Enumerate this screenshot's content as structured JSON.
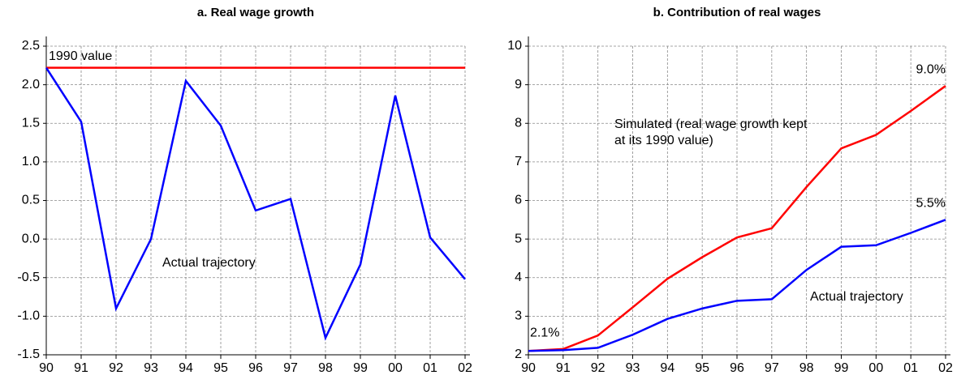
{
  "chart_data": [
    {
      "type": "line",
      "title": "a. Real wage growth",
      "categories": [
        "90",
        "91",
        "92",
        "93",
        "94",
        "95",
        "96",
        "97",
        "98",
        "99",
        "00",
        "01",
        "02"
      ],
      "ylim": [
        -1.5,
        2.5
      ],
      "yticks": [
        2.5,
        {
          "value": 2,
          "label": "2.0"
        },
        1.5,
        {
          "value": 1,
          "label": "1.0"
        },
        0.5,
        {
          "value": 0,
          "label": "0.0"
        },
        -0.5,
        {
          "value": -1,
          "label": "-1.0"
        },
        -1.5
      ],
      "grid": true,
      "series": [
        {
          "name": "1990 value",
          "color": "#ff0000",
          "values": [
            2.22,
            2.22,
            2.22,
            2.22,
            2.22,
            2.22,
            2.22,
            2.22,
            2.22,
            2.22,
            2.22,
            2.22,
            2.22
          ]
        },
        {
          "name": "Actual trajectory",
          "color": "#0000ff",
          "values": [
            2.22,
            1.52,
            -0.9,
            0.0,
            2.05,
            1.47,
            0.37,
            0.52,
            -1.28,
            -0.33,
            1.86,
            0.02,
            -0.52
          ]
        }
      ]
    },
    {
      "type": "line",
      "title": "b. Contribution of real wages",
      "categories": [
        "90",
        "91",
        "92",
        "93",
        "94",
        "95",
        "96",
        "97",
        "98",
        "99",
        "00",
        "01",
        "02"
      ],
      "ylim": [
        2,
        10
      ],
      "yticks": [
        2,
        3,
        4,
        5,
        6,
        7,
        8,
        9,
        10
      ],
      "grid": true,
      "series": [
        {
          "name": "Simulated (real wage growth kept at its 1990 value)",
          "color": "#ff0000",
          "values": [
            2.1,
            2.15,
            2.5,
            3.23,
            3.97,
            4.53,
            5.04,
            5.28,
            6.35,
            7.35,
            7.7,
            8.32,
            8.97
          ],
          "value_labels": [
            "2.1%",
            null,
            null,
            null,
            null,
            null,
            null,
            null,
            null,
            null,
            null,
            null,
            "9.0%"
          ]
        },
        {
          "name": "Actual trajectory",
          "color": "#0000ff",
          "values": [
            2.1,
            2.12,
            2.18,
            2.52,
            2.93,
            3.2,
            3.4,
            3.44,
            4.2,
            4.8,
            4.84,
            5.16,
            5.5
          ],
          "value_labels": [
            null,
            null,
            null,
            null,
            null,
            null,
            null,
            null,
            null,
            null,
            null,
            null,
            "5.5%"
          ]
        }
      ]
    }
  ]
}
